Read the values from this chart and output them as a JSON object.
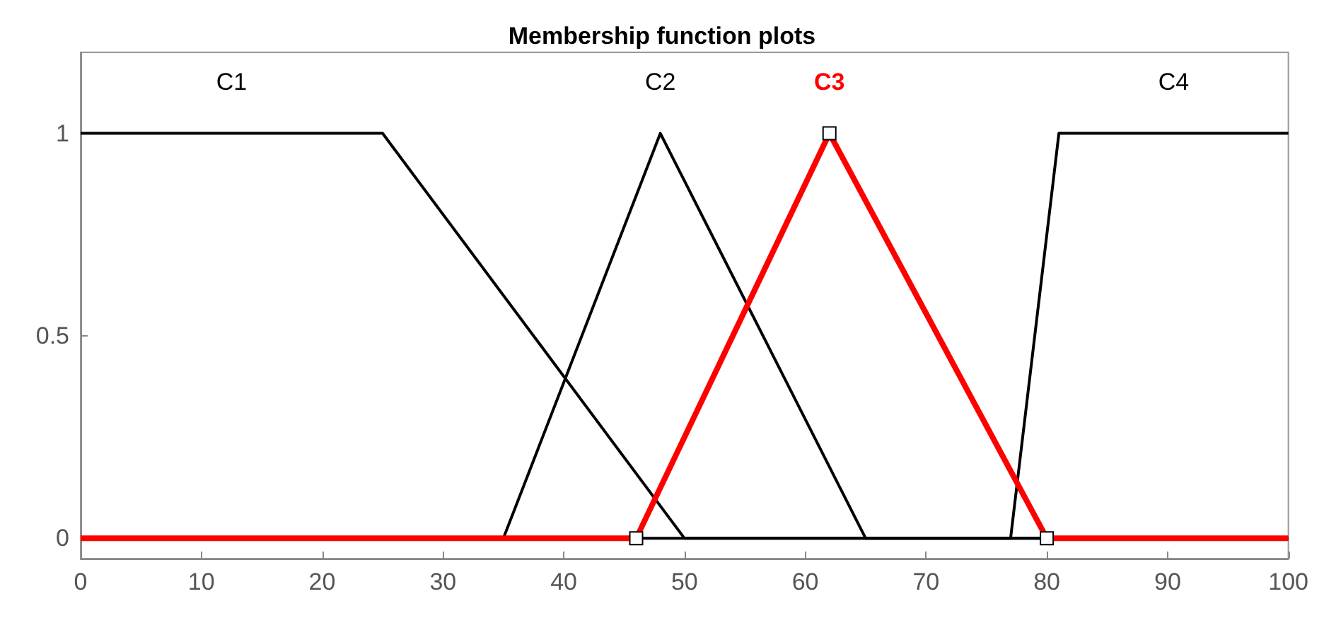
{
  "chart_data": {
    "type": "line",
    "title": "Membership function plots",
    "xlim": [
      0,
      100
    ],
    "xticks": [
      0,
      10,
      20,
      30,
      40,
      50,
      60,
      70,
      80,
      90,
      100
    ],
    "ylim": [
      -0.05,
      1.2
    ],
    "yticks": [
      0,
      0.5,
      1
    ],
    "grid": false,
    "legend": false,
    "series": [
      {
        "name": "C1",
        "color": "#000000",
        "x": [
          0,
          25,
          50,
          100
        ],
        "values": [
          1,
          1,
          0,
          0
        ]
      },
      {
        "name": "C2",
        "color": "#000000",
        "x": [
          0,
          35,
          48,
          65,
          100
        ],
        "values": [
          0,
          0,
          1,
          0,
          0
        ]
      },
      {
        "name": "C4",
        "color": "#000000",
        "x": [
          0,
          77,
          81,
          100
        ],
        "values": [
          0,
          0,
          1,
          1
        ]
      },
      {
        "name": "C3",
        "color": "#ff0000",
        "marker": "square",
        "x": [
          0,
          46,
          62,
          80,
          100
        ],
        "values": [
          0,
          0,
          1,
          0,
          0
        ]
      }
    ]
  }
}
